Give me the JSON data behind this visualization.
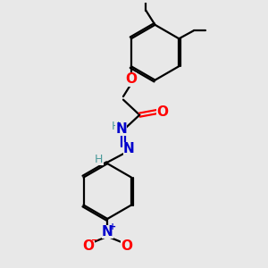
{
  "background_color": "#e8e8e8",
  "bond_color": "#000000",
  "atom_colors": {
    "O": "#ff0000",
    "N": "#0000cc",
    "H": "#4a9a9a",
    "C": "#000000"
  },
  "figsize": [
    3.0,
    3.0
  ],
  "dpi": 100,
  "xlim": [
    0,
    10
  ],
  "ylim": [
    0,
    10
  ]
}
